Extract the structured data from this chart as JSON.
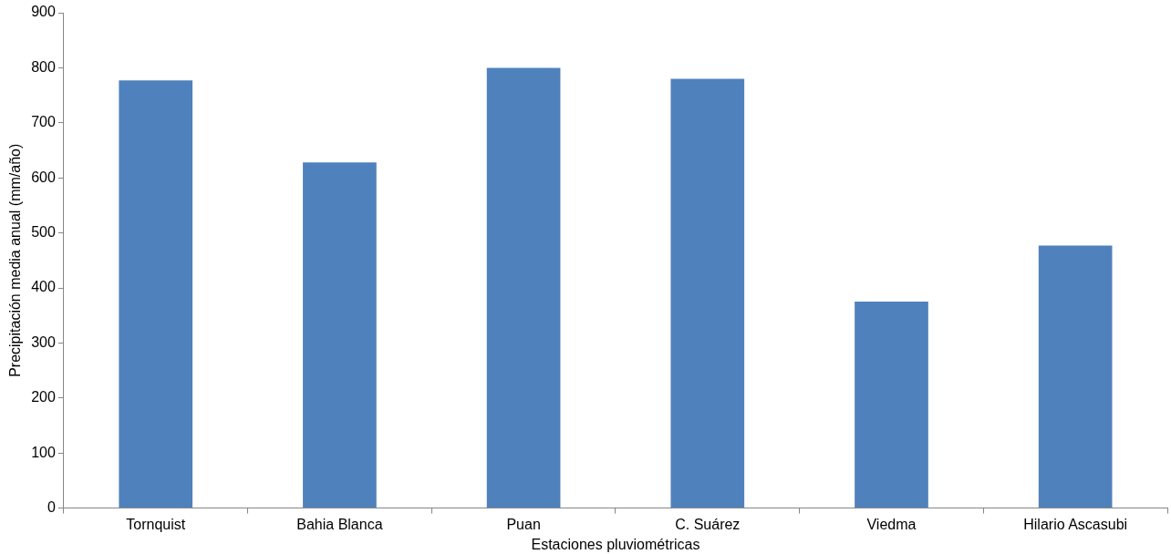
{
  "chart_data": {
    "type": "bar",
    "xlabel": "Estaciones pluviométricas",
    "ylabel": "Precipitación media anual (mm/año)",
    "categories": [
      "Tornquist",
      "Bahia Blanca",
      "Puan",
      "C. Suárez",
      "Viedma",
      "Hilario Ascasubi"
    ],
    "values": [
      777,
      628,
      800,
      780,
      375,
      477
    ],
    "color": "#4f81bd",
    "ylim": [
      0,
      900
    ],
    "yticks": [
      0,
      100,
      200,
      300,
      400,
      500,
      600,
      700,
      800,
      900
    ],
    "grid": false,
    "legend": false
  }
}
